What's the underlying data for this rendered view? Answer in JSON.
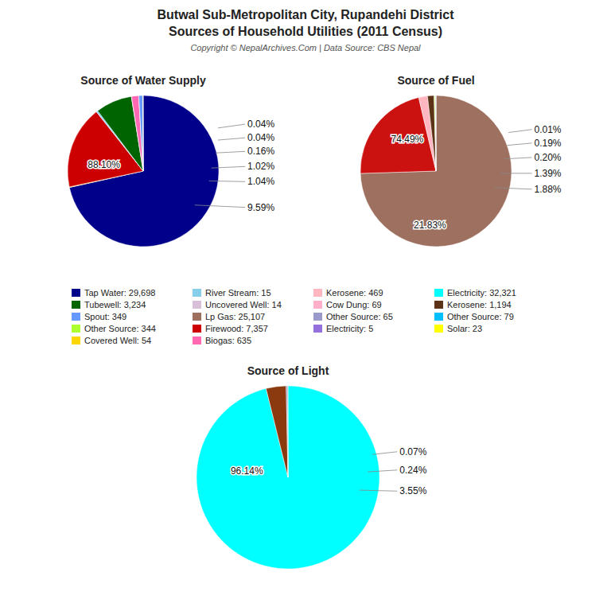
{
  "title": "Butwal Sub-Metropolitan City, Rupandehi District",
  "subtitle": "Sources of Household Utilities (2011 Census)",
  "annotations": [
    "Copyright © NepalArchives.Com | Data Source: CBS Nepal"
  ],
  "legend_items": [
    {
      "name": "Tap Water: 29,698",
      "color": "#00008B"
    },
    {
      "name": "Tubewell: 3,234",
      "color": "#006400"
    },
    {
      "name": "Spout: 349",
      "color": "#6699FF"
    },
    {
      "name": "Other Source: 344",
      "color": "#ADFF2F"
    },
    {
      "name": "Covered Well: 54",
      "color": "#FFD700"
    },
    {
      "name": "River Stream: 15",
      "color": "#87CEEB"
    },
    {
      "name": "Uncovered Well: 14",
      "color": "#D8BFD8"
    },
    {
      "name": "Lp Gas: 25,107",
      "color": "#9E7060"
    },
    {
      "name": "Firewood: 7,357",
      "color": "#CC0000"
    },
    {
      "name": "Biogas: 635",
      "color": "#FF69B4"
    },
    {
      "name": "Kerosene: 469",
      "color": "#FFB6C1"
    },
    {
      "name": "Cow Dung: 69",
      "color": "#FFB0C8"
    },
    {
      "name": "Other Source: 65",
      "color": "#9999CC"
    },
    {
      "name": "Electricity: 5",
      "color": "#9370DB"
    },
    {
      "name": "Electricity: 32,321",
      "color": "#00FFFF"
    },
    {
      "name": "Kerosene: 1,194",
      "color": "#5C3317"
    },
    {
      "name": "Other Source: 79",
      "color": "#00BFFF"
    },
    {
      "name": "Solar: 23",
      "color": "#FFFF00"
    }
  ],
  "chart_data": [
    {
      "type": "pie",
      "title": "Source of Water Supply",
      "values": [
        29698,
        54,
        7357,
        65,
        79,
        3234,
        15,
        635,
        5,
        349,
        14,
        23
      ],
      "colors": [
        "#00008B",
        "#FFD700",
        "#CC0000",
        "#9999CC",
        "#00BFFF",
        "#006400",
        "#87CEEB",
        "#FF69B4",
        "#9370DB",
        "#6699FF",
        "#D8BFD8",
        "#FFFF00"
      ],
      "annotations": [
        "88.10%",
        "0.04%",
        "0.04%",
        "0.16%",
        "1.02%",
        "1.04%",
        "9.59%"
      ]
    },
    {
      "type": "pie",
      "title": "Source of Fuel",
      "values": [
        74.49,
        21.83,
        1.88,
        1.39,
        0.2,
        0.19,
        0.01
      ],
      "colors": [
        "#9E7060",
        "#CC1111",
        "#FFB6C1",
        "#5C3317",
        "#ADFF2F",
        "#D8BFD8",
        "#6699FF"
      ],
      "annotations": [
        "74.49%",
        "21.83%",
        "0.01%",
        "0.19%",
        "0.20%",
        "1.39%",
        "1.88%"
      ]
    },
    {
      "type": "pie",
      "title": "Source of Light",
      "values": [
        96.14,
        3.55,
        0.24,
        0.07
      ],
      "colors": [
        "#00FFFF",
        "#8B3A10",
        "#9999CC",
        "#5C3317"
      ],
      "annotations": [
        "96.14%",
        "0.07%",
        "0.24%",
        "3.55%"
      ]
    }
  ]
}
